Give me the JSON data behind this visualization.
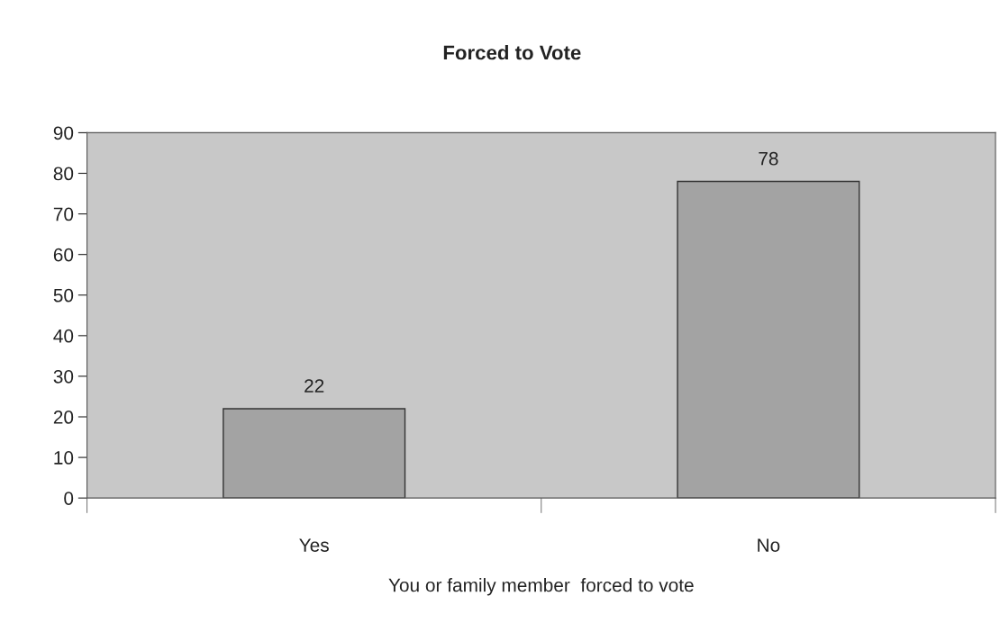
{
  "chart_data": {
    "type": "bar",
    "title": "Forced to Vote",
    "xlabel": "You or family member  forced to vote",
    "categories": [
      "Yes",
      "No"
    ],
    "values": [
      22,
      78
    ],
    "color": "#a3a3a3",
    "ylim": [
      0,
      90
    ],
    "yticks": [
      0,
      10,
      20,
      30,
      40,
      50,
      60,
      70,
      80,
      90
    ],
    "grid": false,
    "legend": false,
    "data_labels": true
  }
}
